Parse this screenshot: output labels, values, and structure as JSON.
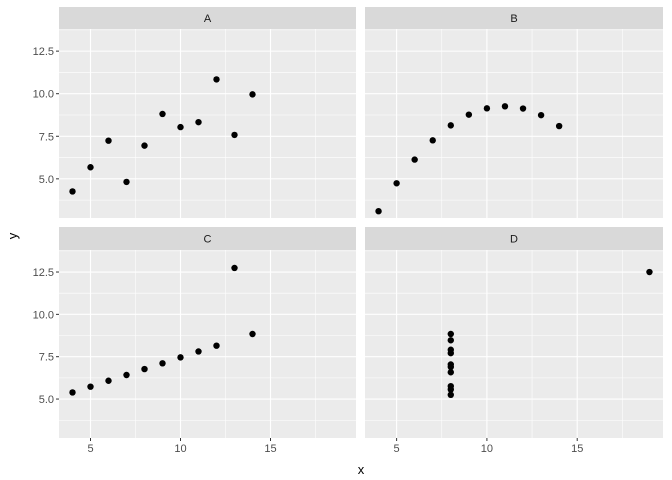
{
  "chart_data": {
    "type": "scatter",
    "title": "",
    "xlabel": "x",
    "ylabel": "y",
    "xlim": [
      3.25,
      19.75
    ],
    "ylim": [
      2.7,
      13.8
    ],
    "x_ticks": [
      5,
      10,
      15
    ],
    "y_ticks": [
      5.0,
      7.5,
      10.0,
      12.5
    ],
    "x_tick_labels": [
      "5",
      "10",
      "15"
    ],
    "y_tick_labels": [
      "5.0",
      "7.5",
      "10.0",
      "12.5"
    ],
    "grid": true,
    "facets": [
      {
        "label": "A",
        "x": [
          4,
          5,
          6,
          7,
          8,
          9,
          10,
          11,
          12,
          13,
          14
        ],
        "y": [
          4.26,
          5.68,
          7.24,
          4.82,
          6.95,
          8.81,
          8.04,
          8.33,
          10.84,
          7.58,
          9.96
        ]
      },
      {
        "label": "B",
        "x": [
          4,
          5,
          6,
          7,
          8,
          9,
          10,
          11,
          12,
          13,
          14
        ],
        "y": [
          3.1,
          4.74,
          6.13,
          7.26,
          8.14,
          8.77,
          9.14,
          9.26,
          9.13,
          8.74,
          8.1
        ]
      },
      {
        "label": "C",
        "x": [
          4,
          5,
          6,
          7,
          8,
          9,
          10,
          11,
          12,
          13,
          14
        ],
        "y": [
          5.39,
          5.73,
          6.08,
          6.42,
          6.77,
          7.11,
          7.46,
          7.81,
          8.15,
          12.74,
          8.84
        ]
      },
      {
        "label": "D",
        "x": [
          8,
          8,
          8,
          8,
          8,
          8,
          8,
          8,
          8,
          8,
          19
        ],
        "y": [
          5.25,
          5.56,
          5.76,
          6.58,
          6.89,
          7.04,
          7.71,
          7.91,
          8.47,
          8.84,
          12.5
        ]
      }
    ],
    "colors": {
      "panel_background": "#ebebeb",
      "strip_background": "#d9d9d9",
      "grid_major": "#ffffff",
      "point": "#000000"
    }
  }
}
